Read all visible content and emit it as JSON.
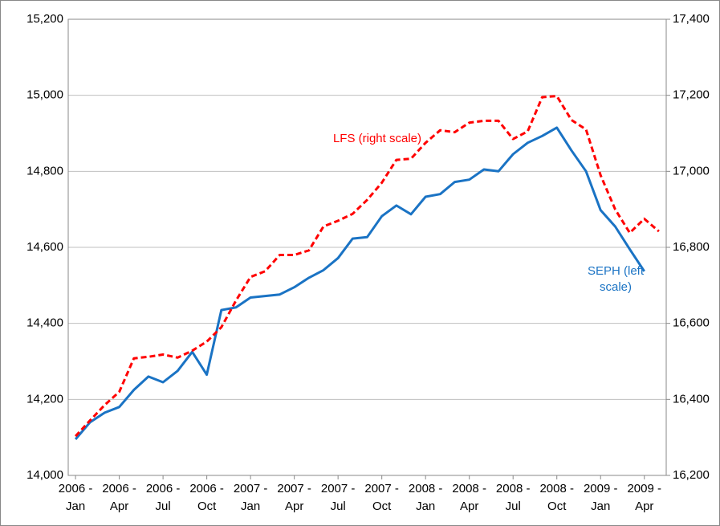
{
  "chart_data": {
    "type": "line",
    "categories": [
      "2006 - Jan",
      null,
      null,
      "2006 - Apr",
      null,
      null,
      "2006 - Jul",
      null,
      null,
      "2006 - Oct",
      null,
      null,
      "2007 - Jan",
      null,
      null,
      "2007 - Apr",
      null,
      null,
      "2007 - Jul",
      null,
      null,
      "2007 - Oct",
      null,
      null,
      "2008 - Jan",
      null,
      null,
      "2008 - Apr",
      null,
      null,
      "2008 - Jul",
      null,
      null,
      "2008 - Oct",
      null,
      null,
      "2009 - Jan",
      null,
      null,
      "2009 - Apr",
      null
    ],
    "series": [
      {
        "name": "SEPH",
        "color": "#1a73c4",
        "dash": false,
        "values": [
          14095,
          14140,
          14165,
          14180,
          14225,
          14260,
          14245,
          14275,
          14325,
          14265,
          14435,
          14442,
          14468,
          14472,
          14476,
          14495,
          14520,
          14540,
          14572,
          14623,
          14627,
          14682,
          14710,
          14687,
          14733,
          14740,
          14772,
          14778,
          14805,
          14800,
          14845,
          14875,
          14893,
          14915,
          14855,
          14800,
          14698,
          14655,
          14595,
          14537,
          null
        ]
      },
      {
        "name": "LFS",
        "color": "#ff0000",
        "dash": true,
        "axis": "y2",
        "values": [
          16303,
          16345,
          16385,
          16420,
          16508,
          16512,
          16518,
          16510,
          16528,
          16552,
          16590,
          16660,
          16722,
          16737,
          16780,
          16780,
          16792,
          16855,
          16870,
          16888,
          16925,
          16970,
          17030,
          17033,
          17075,
          17108,
          17103,
          17128,
          17133,
          17133,
          17085,
          17105,
          17195,
          17198,
          17135,
          17110,
          16990,
          16900,
          16838,
          16875,
          16842
        ]
      }
    ],
    "annotations": [
      {
        "text": "LFS (right scale)",
        "series": 1
      },
      {
        "text": "SEPH (left scale)",
        "series": 0
      }
    ],
    "ylim": [
      14000,
      15200
    ],
    "yticks": [
      {
        "value": 14000,
        "label": "14,000"
      },
      {
        "value": 14200,
        "label": "14,200"
      },
      {
        "value": 14400,
        "label": "14,400"
      },
      {
        "value": 14600,
        "label": "14,600"
      },
      {
        "value": 14800,
        "label": "14,800"
      },
      {
        "value": 15000,
        "label": "15,000"
      },
      {
        "value": 15200,
        "label": "15,200"
      }
    ],
    "y2lim": [
      16200,
      17400
    ],
    "y2ticks": [
      {
        "value": 16200,
        "label": "16,200"
      },
      {
        "value": 16400,
        "label": "16,400"
      },
      {
        "value": 16600,
        "label": "16,600"
      },
      {
        "value": 16800,
        "label": "16,800"
      },
      {
        "value": 17000,
        "label": "17,000"
      },
      {
        "value": 17200,
        "label": "17,200"
      },
      {
        "value": 17400,
        "label": "17,400"
      }
    ],
    "grid": true
  }
}
